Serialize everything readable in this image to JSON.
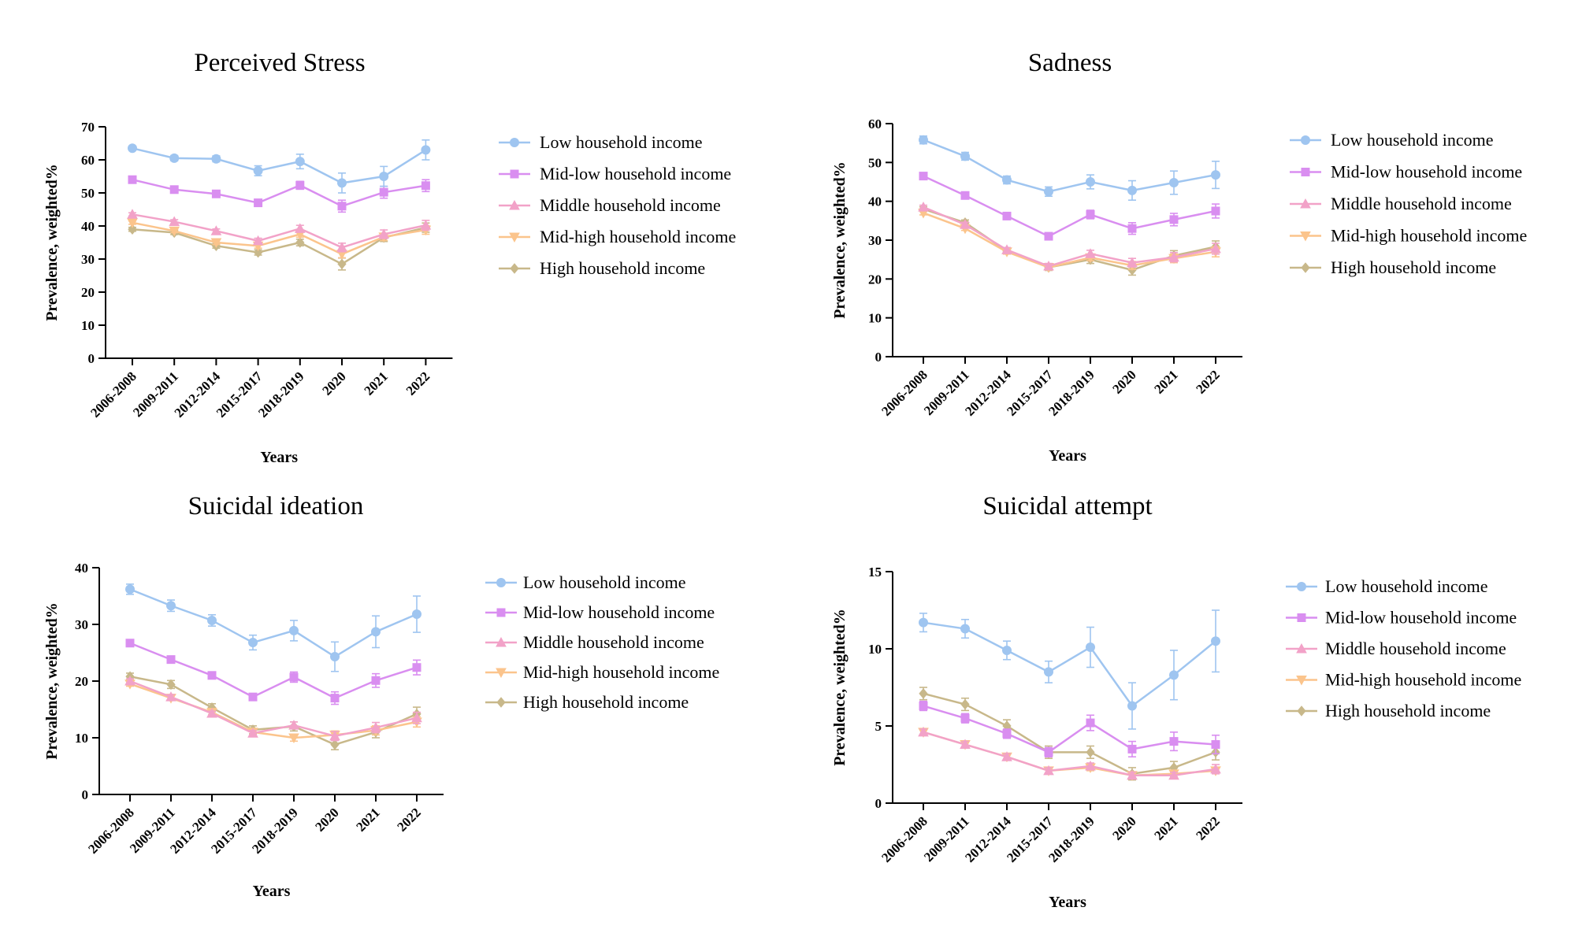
{
  "chart_data": [
    {
      "type": "line",
      "title": "Perceived Stress",
      "xlabel": "Years",
      "ylabel": "Prevalence, weighted%",
      "categories": [
        "2006-2008",
        "2009-2011",
        "2012-2014",
        "2015-2017",
        "2018-2019",
        "2020",
        "2021",
        "2022"
      ],
      "ylim": [
        0,
        70
      ],
      "yticks": [
        0,
        10,
        20,
        30,
        40,
        50,
        60,
        70
      ],
      "legend_position": "right",
      "series": [
        {
          "name": "Low household income",
          "color": "#9fc5f0",
          "marker": "circle",
          "values": [
            63.5,
            60.5,
            60.3,
            56.7,
            59.5,
            53,
            55,
            63
          ],
          "errors": [
            0.6,
            0.8,
            0.9,
            1.5,
            2.2,
            3,
            3,
            3
          ]
        },
        {
          "name": "Mid-low household income",
          "color": "#d98ef0",
          "marker": "square",
          "values": [
            54,
            51,
            49.7,
            47,
            52.3,
            46,
            50.2,
            52.2
          ],
          "errors": [
            0.6,
            0.6,
            0.7,
            0.9,
            1.2,
            1.8,
            1.8,
            1.8
          ]
        },
        {
          "name": "Middle household income",
          "color": "#f2a2c8",
          "marker": "triangle-up",
          "values": [
            43.5,
            41.3,
            38.5,
            35.5,
            39.2,
            33.5,
            37.5,
            40.2
          ],
          "errors": [
            0.5,
            0.6,
            0.6,
            0.8,
            1,
            1.3,
            1.3,
            1.5
          ]
        },
        {
          "name": "Mid-high household income",
          "color": "#fbc48c",
          "marker": "triangle-down",
          "values": [
            41,
            38.5,
            35,
            34,
            37.5,
            31.5,
            36.7,
            38.8
          ],
          "errors": [
            0.5,
            0.5,
            0.6,
            0.7,
            0.9,
            1.1,
            1.1,
            1.3
          ]
        },
        {
          "name": "High household income",
          "color": "#c8b88a",
          "marker": "diamond",
          "values": [
            39,
            38,
            34,
            32,
            35,
            28.5,
            36.5,
            39.5
          ],
          "errors": [
            0.6,
            0.6,
            0.7,
            0.8,
            1,
            1.8,
            1.2,
            1.4
          ]
        }
      ]
    },
    {
      "type": "line",
      "title": "Sadness",
      "xlabel": "Years",
      "ylabel": "Prevalence, weighted%",
      "categories": [
        "2006-2008",
        "2009-2011",
        "2012-2014",
        "2015-2017",
        "2018-2019",
        "2020",
        "2021",
        "2022"
      ],
      "ylim": [
        0,
        60
      ],
      "yticks": [
        0,
        10,
        20,
        30,
        40,
        50,
        60
      ],
      "legend_position": "right",
      "series": [
        {
          "name": "Low household income",
          "color": "#9fc5f0",
          "marker": "circle",
          "values": [
            55.8,
            51.6,
            45.5,
            42.5,
            45,
            42.8,
            44.8,
            46.8
          ],
          "errors": [
            1,
            1,
            1,
            1.2,
            1.8,
            2.5,
            3,
            3.5
          ]
        },
        {
          "name": "Mid-low household income",
          "color": "#d98ef0",
          "marker": "square",
          "values": [
            46.5,
            41.5,
            36.2,
            31,
            36.6,
            33,
            35.3,
            37.5
          ],
          "errors": [
            0.6,
            0.6,
            0.7,
            0.8,
            1.1,
            1.5,
            1.6,
            1.8
          ]
        },
        {
          "name": "Middle household income",
          "color": "#f2a2c8",
          "marker": "triangle-up",
          "values": [
            38.5,
            34,
            27.5,
            23.3,
            26.5,
            24.2,
            25.6,
            27.8
          ],
          "errors": [
            0.5,
            0.6,
            0.6,
            0.7,
            0.9,
            1.1,
            1.2,
            1.4
          ]
        },
        {
          "name": "Mid-high household income",
          "color": "#fbc48c",
          "marker": "triangle-down",
          "values": [
            37,
            33,
            27,
            23,
            25.5,
            23.5,
            25.3,
            27
          ],
          "errors": [
            0.5,
            0.5,
            0.6,
            0.7,
            0.8,
            1,
            1.1,
            1.3
          ]
        },
        {
          "name": "High household income",
          "color": "#c8b88a",
          "marker": "diamond",
          "values": [
            38,
            34.5,
            27.2,
            23,
            25,
            22.3,
            26,
            28.3
          ],
          "errors": [
            0.6,
            0.7,
            0.7,
            0.8,
            1,
            1.3,
            1.3,
            1.5
          ]
        }
      ]
    },
    {
      "type": "line",
      "title": "Suicidal ideation",
      "xlabel": "Years",
      "ylabel": "Prevalence, weighted%",
      "categories": [
        "2006-2008",
        "2009-2011",
        "2012-2014",
        "2015-2017",
        "2018-2019",
        "2020",
        "2021",
        "2022"
      ],
      "ylim": [
        0,
        40
      ],
      "yticks": [
        0,
        10,
        20,
        30,
        40
      ],
      "legend_position": "right",
      "series": [
        {
          "name": "Low household income",
          "color": "#9fc5f0",
          "marker": "circle",
          "values": [
            36.2,
            33.3,
            30.7,
            26.8,
            28.9,
            24.3,
            28.7,
            31.8
          ],
          "errors": [
            0.9,
            1,
            1,
            1.3,
            1.8,
            2.6,
            2.8,
            3.2
          ]
        },
        {
          "name": "Mid-low household income",
          "color": "#d98ef0",
          "marker": "square",
          "values": [
            26.7,
            23.8,
            21,
            17.2,
            20.7,
            17,
            20.1,
            22.4
          ],
          "errors": [
            0.5,
            0.5,
            0.5,
            0.6,
            0.9,
            1.1,
            1.2,
            1.3
          ]
        },
        {
          "name": "Middle household income",
          "color": "#f2a2c8",
          "marker": "triangle-up",
          "values": [
            20,
            17.2,
            14.3,
            10.8,
            12.2,
            10.3,
            11.8,
            13.5
          ],
          "errors": [
            0.4,
            0.4,
            0.4,
            0.5,
            0.6,
            0.8,
            0.9,
            1
          ]
        },
        {
          "name": "Mid-high household income",
          "color": "#fbc48c",
          "marker": "triangle-down",
          "values": [
            19.5,
            17,
            14.5,
            11,
            10,
            10.5,
            11.3,
            12.8
          ],
          "errors": [
            0.4,
            0.4,
            0.4,
            0.5,
            0.6,
            0.7,
            0.8,
            0.9
          ]
        },
        {
          "name": "High household income",
          "color": "#c8b88a",
          "marker": "diamond",
          "values": [
            20.8,
            19.4,
            15.3,
            11.4,
            12,
            8.8,
            11,
            14.2
          ],
          "errors": [
            0.6,
            0.7,
            0.7,
            0.7,
            0.8,
            0.9,
            1,
            1.2
          ]
        }
      ]
    },
    {
      "type": "line",
      "title": "Suicidal attempt",
      "xlabel": "Years",
      "ylabel": "Prevalence, weighted%",
      "categories": [
        "2006-2008",
        "2009-2011",
        "2012-2014",
        "2015-2017",
        "2018-2019",
        "2020",
        "2021",
        "2022"
      ],
      "ylim": [
        0,
        15
      ],
      "yticks": [
        0,
        5,
        10,
        15
      ],
      "legend_position": "right",
      "series": [
        {
          "name": "Low household income",
          "color": "#9fc5f0",
          "marker": "circle",
          "values": [
            11.7,
            11.3,
            9.9,
            8.5,
            10.1,
            6.3,
            8.3,
            10.5
          ],
          "errors": [
            0.6,
            0.6,
            0.6,
            0.7,
            1.3,
            1.5,
            1.6,
            2
          ]
        },
        {
          "name": "Mid-low household income",
          "color": "#d98ef0",
          "marker": "square",
          "values": [
            6.3,
            5.5,
            4.5,
            3.3,
            5.2,
            3.5,
            4,
            3.8
          ],
          "errors": [
            0.3,
            0.3,
            0.3,
            0.3,
            0.5,
            0.5,
            0.6,
            0.6
          ]
        },
        {
          "name": "Middle household income",
          "color": "#f2a2c8",
          "marker": "triangle-up",
          "values": [
            4.6,
            3.8,
            3,
            2.1,
            2.4,
            1.8,
            1.8,
            2.2
          ],
          "errors": [
            0.2,
            0.2,
            0.2,
            0.2,
            0.2,
            0.2,
            0.2,
            0.3
          ]
        },
        {
          "name": "Mid-high household income",
          "color": "#fbc48c",
          "marker": "triangle-down",
          "values": [
            4.6,
            3.8,
            3,
            2.1,
            2.3,
            1.8,
            1.9,
            2.1
          ],
          "errors": [
            0.2,
            0.2,
            0.2,
            0.2,
            0.2,
            0.2,
            0.2,
            0.2
          ]
        },
        {
          "name": "High household income",
          "color": "#c8b88a",
          "marker": "diamond",
          "values": [
            7.1,
            6.4,
            5,
            3.3,
            3.3,
            1.9,
            2.3,
            3.3
          ],
          "errors": [
            0.4,
            0.4,
            0.4,
            0.4,
            0.4,
            0.4,
            0.4,
            0.5
          ]
        }
      ]
    }
  ]
}
